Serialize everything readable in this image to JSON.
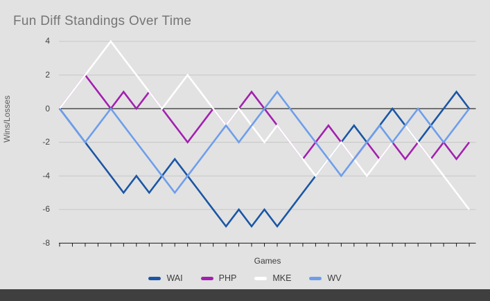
{
  "title": "Fun Diff Standings Over Time",
  "axes": {
    "y_label": "Wins/Losses",
    "x_label": "Games",
    "y_ticks": [
      4,
      2,
      0,
      -2,
      -4,
      -6,
      -8
    ]
  },
  "colors": {
    "background": "#e2e2e2",
    "title_text": "#757575",
    "axis_text": "#424242",
    "gridline": "#c7c7c7",
    "zero_line": "#000000",
    "baseline": "#1a1a1a",
    "footer_strip": "#3f3f3f",
    "wai": "#1a56a5",
    "php": "#a31fb0",
    "mke": "#ffffff",
    "wv": "#6d9eeb"
  },
  "chart_data": {
    "type": "line",
    "title": "Fun Diff Standings Over Time",
    "xlabel": "Games",
    "ylabel": "Wins/Losses",
    "x": [
      0,
      1,
      2,
      3,
      4,
      5,
      6,
      7,
      8,
      9,
      10,
      11,
      12,
      13,
      14,
      15,
      16,
      17,
      18,
      19,
      20,
      21,
      22,
      23,
      24,
      25,
      26,
      27,
      28,
      29,
      30,
      31,
      32
    ],
    "ylim": [
      -8,
      4
    ],
    "grid": true,
    "legend_position": "bottom",
    "series": [
      {
        "name": "WAI",
        "color": "#1a56a5",
        "values": [
          0,
          -1,
          -2,
          -3,
          -4,
          -5,
          -4,
          -5,
          -4,
          -3,
          -4,
          -5,
          -6,
          -7,
          -6,
          -7,
          -6,
          -7,
          -6,
          -5,
          -4,
          -3,
          -2,
          -1,
          -2,
          -1,
          0,
          -1,
          -2,
          -1,
          0,
          1,
          0
        ]
      },
      {
        "name": "PHP",
        "color": "#a31fb0",
        "values": [
          0,
          1,
          2,
          1,
          0,
          1,
          0,
          1,
          0,
          -1,
          -2,
          -1,
          0,
          -1,
          0,
          1,
          0,
          -1,
          -2,
          -3,
          -2,
          -1,
          -2,
          -3,
          -2,
          -3,
          -2,
          -3,
          -2,
          -3,
          -2,
          -3,
          -2
        ]
      },
      {
        "name": "MKE",
        "color": "#ffffff",
        "values": [
          0,
          1,
          2,
          3,
          4,
          3,
          2,
          1,
          0,
          1,
          2,
          1,
          0,
          -1,
          0,
          -1,
          -2,
          -1,
          -2,
          -3,
          -4,
          -3,
          -2,
          -3,
          -4,
          -3,
          -2,
          -1,
          -2,
          -3,
          -4,
          -5,
          -6
        ]
      },
      {
        "name": "WV",
        "color": "#6d9eeb",
        "values": [
          0,
          -1,
          -2,
          -1,
          0,
          -1,
          -2,
          -3,
          -4,
          -5,
          -4,
          -3,
          -2,
          -1,
          -2,
          -1,
          0,
          1,
          0,
          -1,
          -2,
          -3,
          -4,
          -3,
          -2,
          -1,
          -2,
          -1,
          0,
          -1,
          -2,
          -1,
          0
        ]
      }
    ]
  }
}
